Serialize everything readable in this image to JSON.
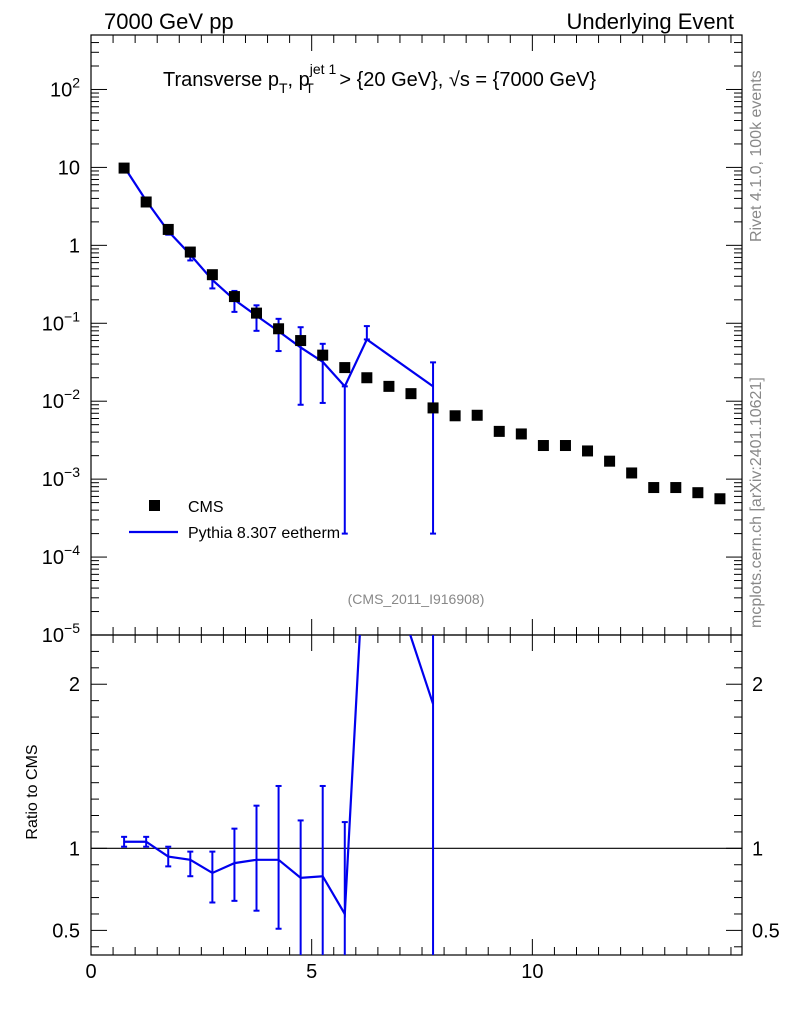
{
  "header": {
    "left": "7000 GeV pp",
    "right": "Underlying Event"
  },
  "title": {
    "main": "Transverse p",
    "sub_T": "T",
    "mid": ", p",
    "sup": "jet 1",
    "sub_T2": "T",
    "tail": " > {20 GeV}, √s = {7000 GeV}"
  },
  "side_text": {
    "rivet": "Rivet 4.1.0,  100k events",
    "mcplots": "mcplots.cern.ch [arXiv:2401.10621]"
  },
  "watermark": "(CMS_2011_I916908)",
  "ratio_ylabel": "Ratio to CMS",
  "legend": [
    {
      "label": "CMS",
      "marker": "square",
      "color": "#000000"
    },
    {
      "label": "Pythia 8.307 eetherm",
      "marker": "line",
      "color": "#0000ee"
    }
  ],
  "colors": {
    "data": "#000000",
    "mc": "#0000ee",
    "frame": "#000000"
  },
  "chart_data": {
    "type": "scatter",
    "xlim": [
      0,
      14.75
    ],
    "x_ticks": [
      "0",
      "5",
      "10"
    ],
    "main": {
      "yscale": "log",
      "ylim": [
        1e-05,
        500
      ],
      "y_tick_labels": [
        "10^-5",
        "10^-4",
        "10^-3",
        "10^-2",
        "10^-1",
        "1",
        "10",
        "10^2"
      ],
      "series": [
        {
          "name": "CMS",
          "x": [
            0.75,
            1.25,
            1.75,
            2.25,
            2.75,
            3.25,
            3.75,
            4.25,
            4.75,
            5.25,
            5.75,
            6.25,
            6.75,
            7.25,
            7.75,
            8.25,
            8.75,
            9.25,
            9.75,
            10.25,
            10.75,
            11.25,
            11.75,
            12.25,
            12.75,
            13.25,
            13.75,
            14.25
          ],
          "y": [
            9.8,
            3.6,
            1.6,
            0.82,
            0.42,
            0.22,
            0.135,
            0.085,
            0.06,
            0.039,
            0.027,
            0.02,
            0.0155,
            0.0125,
            0.0082,
            0.0065,
            0.0066,
            0.0041,
            0.0038,
            0.0027,
            0.0027,
            0.0023,
            0.0017,
            0.0012,
            0.00078,
            0.00078,
            0.00067,
            0.00056
          ]
        },
        {
          "name": "Pythia 8.307 eetherm",
          "x": [
            0.75,
            1.25,
            1.75,
            2.25,
            2.75,
            3.25,
            3.75,
            4.25,
            4.75,
            5.25,
            5.75,
            6.25,
            7.75
          ],
          "y": [
            10.2,
            3.75,
            1.52,
            0.76,
            0.36,
            0.2,
            0.125,
            0.079,
            0.049,
            0.032,
            0.0155,
            0.062,
            0.0155
          ],
          "err_low": [
            0.4,
            0.2,
            0.15,
            0.12,
            0.08,
            0.06,
            0.045,
            0.035,
            0.04,
            0.0225,
            0.0153,
            0.0,
            0.0153
          ],
          "err_high": [
            0.4,
            0.2,
            0.15,
            0.12,
            0.08,
            0.06,
            0.045,
            0.035,
            0.04,
            0.0225,
            0.0,
            0.03,
            0.016
          ]
        }
      ]
    },
    "ratio": {
      "ylabel": "Ratio to CMS",
      "ylim": [
        0.35,
        2.3
      ],
      "y_ticks": [
        "0.5",
        "1",
        "2"
      ],
      "reference_line": 1,
      "series": [
        {
          "name": "Pythia 8.307 eetherm",
          "x": [
            0.75,
            1.25,
            1.75,
            2.25,
            2.75,
            3.25,
            3.75,
            4.25,
            4.75,
            5.25,
            5.75,
            6.25,
            7.75
          ],
          "y": [
            1.04,
            1.04,
            0.95,
            0.93,
            0.85,
            0.91,
            0.93,
            0.93,
            0.82,
            0.83,
            0.6,
            3.1,
            1.88
          ],
          "err_low": [
            0.03,
            0.03,
            0.06,
            0.1,
            0.18,
            0.23,
            0.31,
            0.42,
            0.82,
            0.83,
            0.6,
            0.0,
            1.88
          ],
          "err_high": [
            0.03,
            0.03,
            0.06,
            0.05,
            0.13,
            0.21,
            0.33,
            0.45,
            0.35,
            0.55,
            0.56,
            0.0,
            0.42
          ]
        }
      ]
    }
  }
}
